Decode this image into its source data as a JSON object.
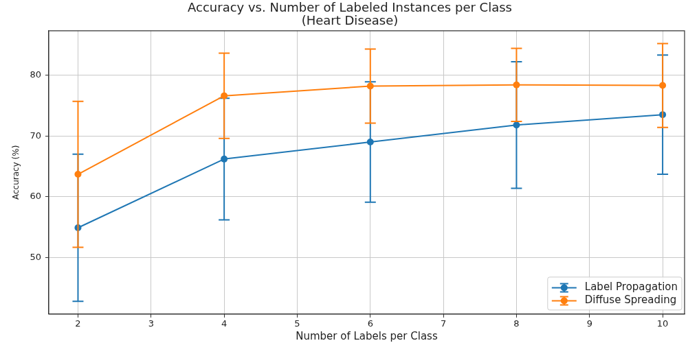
{
  "chart_data": {
    "type": "line",
    "title": "Accuracy vs. Number of Labeled Instances per Class",
    "subtitle": "(Heart Disease)",
    "xlabel": "Number of Labels per Class",
    "ylabel": "Accuracy (%)",
    "x": [
      2,
      4,
      6,
      8,
      10
    ],
    "series": [
      {
        "name": "Label Propagation",
        "color": "#1f77b4",
        "values": [
          54.9,
          66.2,
          69.0,
          71.8,
          73.5
        ],
        "errors": [
          12.1,
          10.0,
          9.9,
          10.4,
          9.8
        ]
      },
      {
        "name": "Diffuse Spreading",
        "color": "#ff7f0e",
        "values": [
          63.7,
          76.6,
          78.2,
          78.4,
          78.3
        ],
        "errors": [
          12.0,
          7.0,
          6.1,
          6.0,
          6.9
        ]
      }
    ],
    "xlim": [
      1.6,
      10.3
    ],
    "xticks": [
      2,
      3,
      4,
      5,
      6,
      7,
      8,
      9,
      10
    ],
    "ylim": [
      40.7,
      87.3
    ],
    "yticks": [
      50,
      60,
      70,
      80
    ],
    "grid": true,
    "legend": "bottom right",
    "marker": "circle",
    "line_style": "solid"
  }
}
